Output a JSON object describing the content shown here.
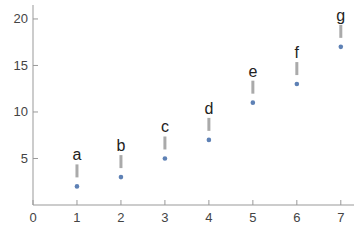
{
  "chart_data": {
    "type": "scatter",
    "x": [
      1,
      2,
      3,
      4,
      5,
      6,
      7
    ],
    "values": [
      2,
      3,
      5,
      7,
      11,
      13,
      17
    ],
    "point_labels": [
      "a",
      "b",
      "c",
      "d",
      "e",
      "f",
      "g"
    ],
    "color": "#5e81b5",
    "marker": "circle",
    "xlim": [
      0,
      7.3
    ],
    "xticks": [
      0,
      1,
      2,
      3,
      4,
      5,
      6,
      7
    ],
    "ylim": [
      0,
      21.5
    ],
    "yticks": [
      5,
      10,
      15,
      20
    ],
    "grid": false
  }
}
